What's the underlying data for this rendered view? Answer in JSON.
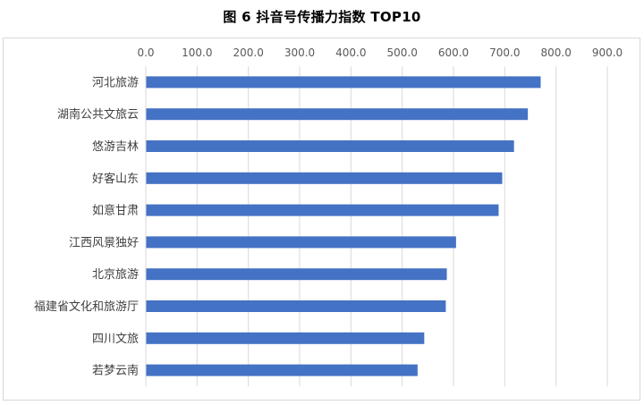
{
  "chart_data": {
    "type": "bar",
    "orientation": "horizontal",
    "title": "图 6 抖音号传播力指数 TOP10",
    "xlabel": "",
    "ylabel": "",
    "xlim": [
      0,
      900
    ],
    "x_ticks": [
      "0.0",
      "100.0",
      "200.0",
      "300.0",
      "400.0",
      "500.0",
      "600.0",
      "700.0",
      "800.0",
      "900.0"
    ],
    "x_axis_position": "top",
    "grid": true,
    "legend": "none",
    "categories": [
      "河北旅游",
      "湖南公共文旅云",
      "悠游吉林",
      "好客山东",
      "如意甘肃",
      "江西风景独好",
      "北京旅游",
      "福建省文化和旅游厅",
      "四川文旅",
      "若梦云南"
    ],
    "values": [
      770,
      745,
      718,
      695,
      688,
      605,
      587,
      585,
      543,
      530
    ],
    "bar_color": "#4472c4",
    "grid_color": "#d9d9d9"
  }
}
